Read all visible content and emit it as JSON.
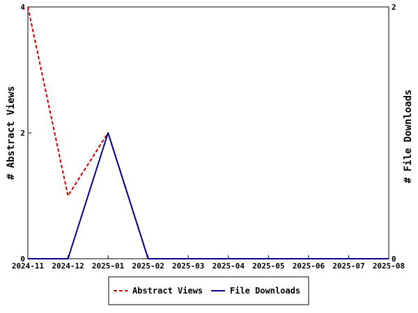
{
  "chart_data": {
    "type": "line",
    "xlabel": "",
    "ylabel_left": "# Abstract Views",
    "ylabel_right": "# File Downloads",
    "categories": [
      "2024-11",
      "2024-12",
      "2025-01",
      "2025-02",
      "2025-03",
      "2025-04",
      "2025-05",
      "2025-06",
      "2025-07",
      "2025-08"
    ],
    "ylim_left": [
      0,
      4
    ],
    "ylim_right": [
      0,
      2
    ],
    "yticks_left": [
      "0",
      "2",
      "4"
    ],
    "yticks_right": [
      "0",
      "2"
    ],
    "grid": false,
    "legend_position": "bottom",
    "series": [
      {
        "name": "Abstract Views",
        "axis": "left",
        "color": "#cc0000",
        "dash": "dashed",
        "values": [
          4,
          1,
          2,
          0,
          0,
          0,
          0,
          0,
          0,
          0
        ]
      },
      {
        "name": "File Downloads",
        "axis": "right",
        "color": "#00008b",
        "dash": "solid",
        "values": [
          0,
          0,
          1,
          0,
          0,
          0,
          0,
          0,
          0,
          0
        ]
      }
    ]
  }
}
